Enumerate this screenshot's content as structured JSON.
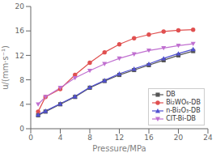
{
  "chart_data": {
    "type": "line",
    "xlabel": "Pressure/MPa",
    "ylabel": "u/(mm·s⁻¹)",
    "x": [
      1,
      2,
      4,
      6,
      8,
      10,
      12,
      14,
      16,
      18,
      20,
      22
    ],
    "series": [
      {
        "name": "DB",
        "color": "#555555",
        "marker": "square",
        "values": [
          2.2,
          2.8,
          4.0,
          5.2,
          6.7,
          7.8,
          8.8,
          9.6,
          10.4,
          11.2,
          12.0,
          12.7
        ]
      },
      {
        "name": "Bi₂WO₆-DB",
        "color": "#e05050",
        "marker": "circle",
        "values": [
          2.8,
          5.2,
          6.5,
          8.8,
          10.8,
          12.5,
          13.8,
          14.8,
          15.4,
          15.9,
          16.1,
          16.2
        ]
      },
      {
        "name": "n-Bi₂O₃-DB",
        "color": "#5050d0",
        "marker": "triangle-up",
        "values": [
          2.3,
          2.9,
          4.1,
          5.3,
          6.8,
          7.9,
          9.0,
          9.8,
          10.6,
          11.5,
          12.3,
          13.0
        ]
      },
      {
        "name": "CIT-Bi-DB",
        "color": "#c070d0",
        "marker": "triangle-down",
        "values": [
          4.0,
          5.2,
          6.7,
          8.3,
          9.5,
          10.6,
          11.5,
          12.2,
          12.8,
          13.2,
          13.6,
          13.9
        ]
      }
    ],
    "xlim": [
      0,
      24
    ],
    "ylim": [
      0,
      20
    ],
    "xticks": [
      0,
      4,
      8,
      12,
      16,
      20,
      24
    ],
    "yticks": [
      0,
      4,
      8,
      12,
      16,
      20
    ],
    "legend": "lower right",
    "grid": false
  }
}
